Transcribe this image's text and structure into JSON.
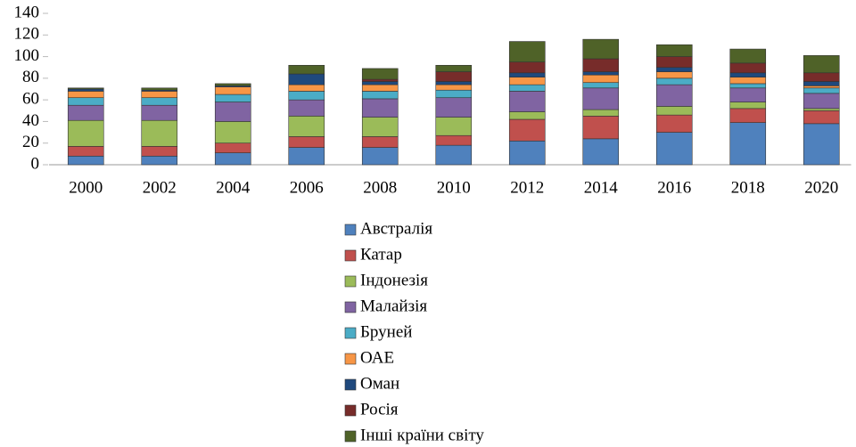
{
  "chart_data": {
    "type": "bar",
    "stacked": true,
    "categories": [
      "2000",
      "2002",
      "2004",
      "2006",
      "2008",
      "2010",
      "2012",
      "2014",
      "2016",
      "2018",
      "2020"
    ],
    "series": [
      {
        "name": "Австралія",
        "color": "#4f81bd",
        "values": [
          8,
          8,
          11,
          16,
          16,
          18,
          22,
          24,
          30,
          39,
          38
        ]
      },
      {
        "name": "Катар",
        "color": "#c0504d",
        "values": [
          9,
          9,
          9,
          10,
          10,
          9,
          20,
          21,
          16,
          13,
          12
        ]
      },
      {
        "name": "Індонезія",
        "color": "#9bbb59",
        "values": [
          24,
          24,
          20,
          19,
          18,
          17,
          7,
          6,
          8,
          6,
          2
        ]
      },
      {
        "name": "Малайзія",
        "color": "#8064a2",
        "values": [
          14,
          14,
          18,
          15,
          17,
          18,
          19,
          20,
          20,
          13,
          14
        ]
      },
      {
        "name": "Бруней",
        "color": "#4bacc6",
        "values": [
          7,
          7,
          7,
          8,
          7,
          7,
          6,
          5,
          6,
          4,
          5
        ]
      },
      {
        "name": "ОАЕ",
        "color": "#f79646",
        "values": [
          6,
          6,
          7,
          6,
          6,
          5,
          7,
          7,
          6,
          6,
          2
        ]
      },
      {
        "name": "Оман",
        "color": "#1f497d",
        "values": [
          2,
          1,
          1,
          10,
          3,
          3,
          4,
          3,
          4,
          4,
          4
        ]
      },
      {
        "name": "Росія",
        "color": "#772c2a",
        "values": [
          0,
          0,
          0,
          0,
          2,
          9,
          10,
          12,
          10,
          9,
          8
        ]
      },
      {
        "name": "Інші країни світу",
        "color": "#4f6228",
        "values": [
          1,
          2,
          2,
          8,
          10,
          6,
          19,
          18,
          11,
          13,
          16
        ]
      }
    ],
    "ylim": [
      0,
      140
    ],
    "yticks": [
      0,
      20,
      40,
      60,
      80,
      100,
      120,
      140
    ],
    "grid": false,
    "legend": "bottom"
  }
}
